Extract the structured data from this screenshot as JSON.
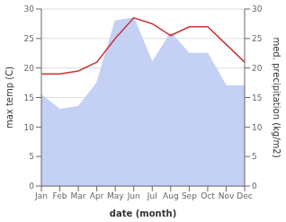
{
  "chart_data": {
    "type": "line",
    "xlabel": "date (month)",
    "ylabel": "max temp (C)",
    "y2label": "med. precipitation (kg/m2)",
    "categories": [
      "Jan",
      "Feb",
      "Mar",
      "Apr",
      "May",
      "Jun",
      "Jul",
      "Aug",
      "Sep",
      "Oct",
      "Nov",
      "Dec"
    ],
    "series": [
      {
        "type": "area",
        "color": "#c5d0f5",
        "axis": "y2",
        "values": [
          15.5,
          13.0,
          13.5,
          17.5,
          28.0,
          28.5,
          21.0,
          26.0,
          22.5,
          22.5,
          17.0,
          17.0
        ]
      },
      {
        "type": "line",
        "color": "#cc3333",
        "values": [
          19.0,
          19.0,
          19.5,
          21.0,
          25.0,
          28.5,
          27.5,
          25.5,
          27.0,
          27.0,
          24.0,
          21.0
        ]
      }
    ],
    "ylim": [
      0,
      30
    ],
    "yticks": [
      0,
      5,
      10,
      15,
      20,
      25,
      30
    ],
    "y2lim": [
      0,
      30
    ],
    "y2ticks": [
      0,
      5,
      10,
      15,
      20,
      25,
      30
    ],
    "grid": true
  }
}
